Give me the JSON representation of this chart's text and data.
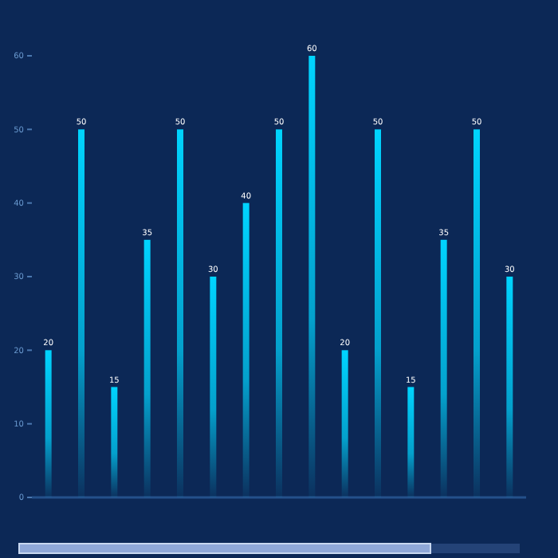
{
  "chart_data": {
    "type": "bar",
    "categories": [
      null,
      null,
      null,
      null,
      null,
      null,
      null,
      null,
      null,
      null,
      null,
      null,
      null,
      null,
      null
    ],
    "values": [
      20,
      50,
      15,
      35,
      50,
      30,
      40,
      50,
      60,
      20,
      50,
      15,
      35,
      50,
      30
    ],
    "color": "#00d4ff",
    "ylim": [
      0,
      60
    ],
    "yticks": [
      0,
      10,
      20,
      30,
      40,
      50,
      60
    ],
    "data_labels": true,
    "grid": false
  }
}
